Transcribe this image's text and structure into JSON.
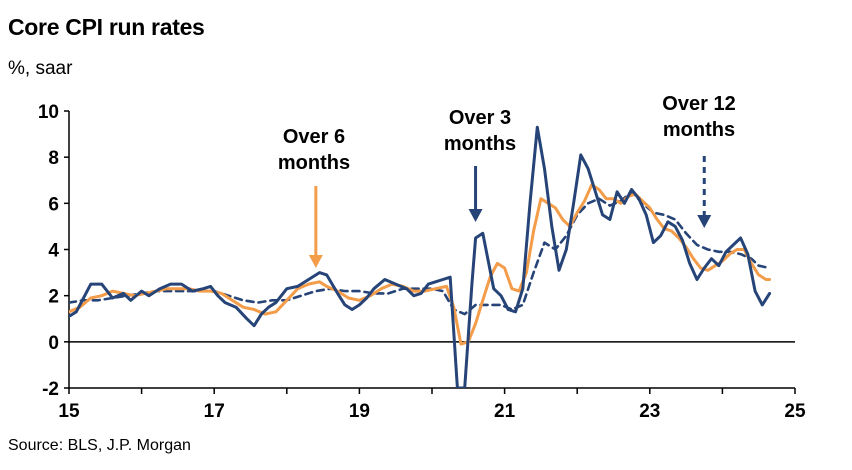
{
  "chart_data": {
    "type": "line",
    "title": "Core CPI run rates",
    "ylabel": "%, saar",
    "source": "Source: BLS, J.P. Morgan",
    "xlim": [
      2015,
      2025
    ],
    "ylim": [
      -2,
      10
    ],
    "x_ticks": [
      2015,
      2017,
      2019,
      2021,
      2023,
      2025
    ],
    "x_tick_labels": [
      "15",
      "17",
      "19",
      "21",
      "23",
      "25"
    ],
    "y_ticks": [
      -2,
      0,
      2,
      4,
      6,
      8,
      10
    ],
    "y_tick_labels": [
      "-2",
      "0",
      "2",
      "4",
      "6",
      "8",
      "10"
    ],
    "colors": {
      "m3": "#264478",
      "m6": "#F39C4A",
      "m12": "#264478"
    },
    "annotations": [
      {
        "text": [
          "Over 6",
          "months"
        ],
        "target_x": 2018.4,
        "series": "m6"
      },
      {
        "text": [
          "Over 3",
          "months"
        ],
        "target_x": 2020.6,
        "series": "m3"
      },
      {
        "text": [
          "Over 12",
          "months"
        ],
        "target_x": 2023.75,
        "series": "m12"
      }
    ],
    "series": [
      {
        "key": "m3",
        "points": [
          [
            2015.0,
            1.1
          ],
          [
            2015.1,
            1.3
          ],
          [
            2015.3,
            2.5
          ],
          [
            2015.45,
            2.5
          ],
          [
            2015.6,
            1.9
          ],
          [
            2015.75,
            2.1
          ],
          [
            2015.85,
            1.8
          ],
          [
            2016.0,
            2.2
          ],
          [
            2016.1,
            2.0
          ],
          [
            2016.25,
            2.3
          ],
          [
            2016.4,
            2.5
          ],
          [
            2016.55,
            2.5
          ],
          [
            2016.7,
            2.2
          ],
          [
            2016.85,
            2.3
          ],
          [
            2016.95,
            2.4
          ],
          [
            2017.05,
            2.0
          ],
          [
            2017.15,
            1.7
          ],
          [
            2017.3,
            1.5
          ],
          [
            2017.45,
            1.0
          ],
          [
            2017.55,
            0.7
          ],
          [
            2017.65,
            1.2
          ],
          [
            2017.75,
            1.5
          ],
          [
            2017.85,
            1.7
          ],
          [
            2018.0,
            2.3
          ],
          [
            2018.15,
            2.4
          ],
          [
            2018.3,
            2.7
          ],
          [
            2018.45,
            3.0
          ],
          [
            2018.55,
            2.9
          ],
          [
            2018.7,
            2.1
          ],
          [
            2018.8,
            1.6
          ],
          [
            2018.9,
            1.4
          ],
          [
            2019.0,
            1.6
          ],
          [
            2019.1,
            1.9
          ],
          [
            2019.2,
            2.3
          ],
          [
            2019.35,
            2.7
          ],
          [
            2019.5,
            2.5
          ],
          [
            2019.65,
            2.3
          ],
          [
            2019.75,
            2.0
          ],
          [
            2019.85,
            2.1
          ],
          [
            2019.95,
            2.5
          ],
          [
            2020.05,
            2.6
          ],
          [
            2020.15,
            2.7
          ],
          [
            2020.25,
            2.8
          ],
          [
            2020.35,
            -2.0
          ],
          [
            2020.45,
            -2.0
          ],
          [
            2020.55,
            2.5
          ],
          [
            2020.6,
            4.5
          ],
          [
            2020.7,
            4.7
          ],
          [
            2020.85,
            2.3
          ],
          [
            2020.95,
            2.0
          ],
          [
            2021.05,
            1.4
          ],
          [
            2021.15,
            1.3
          ],
          [
            2021.25,
            2.3
          ],
          [
            2021.35,
            6.0
          ],
          [
            2021.45,
            9.3
          ],
          [
            2021.55,
            7.5
          ],
          [
            2021.65,
            5.0
          ],
          [
            2021.75,
            3.1
          ],
          [
            2021.85,
            4.0
          ],
          [
            2021.95,
            6.0
          ],
          [
            2022.05,
            8.1
          ],
          [
            2022.15,
            7.5
          ],
          [
            2022.25,
            6.5
          ],
          [
            2022.35,
            5.5
          ],
          [
            2022.45,
            5.3
          ],
          [
            2022.55,
            6.5
          ],
          [
            2022.65,
            6.0
          ],
          [
            2022.75,
            6.6
          ],
          [
            2022.85,
            6.2
          ],
          [
            2022.95,
            5.5
          ],
          [
            2023.05,
            4.3
          ],
          [
            2023.15,
            4.6
          ],
          [
            2023.25,
            5.2
          ],
          [
            2023.35,
            5.0
          ],
          [
            2023.45,
            4.4
          ],
          [
            2023.55,
            3.4
          ],
          [
            2023.65,
            2.7
          ],
          [
            2023.75,
            3.2
          ],
          [
            2023.85,
            3.6
          ],
          [
            2023.95,
            3.3
          ],
          [
            2024.05,
            3.9
          ],
          [
            2024.15,
            4.2
          ],
          [
            2024.25,
            4.5
          ],
          [
            2024.35,
            3.8
          ],
          [
            2024.45,
            2.2
          ],
          [
            2024.55,
            1.6
          ],
          [
            2024.65,
            2.1
          ]
        ]
      },
      {
        "key": "m6",
        "points": [
          [
            2015.0,
            1.3
          ],
          [
            2015.15,
            1.5
          ],
          [
            2015.3,
            1.9
          ],
          [
            2015.45,
            2.0
          ],
          [
            2015.6,
            2.2
          ],
          [
            2015.75,
            2.1
          ],
          [
            2015.9,
            2.0
          ],
          [
            2016.05,
            2.1
          ],
          [
            2016.2,
            2.2
          ],
          [
            2016.35,
            2.3
          ],
          [
            2016.5,
            2.3
          ],
          [
            2016.65,
            2.3
          ],
          [
            2016.8,
            2.2
          ],
          [
            2016.95,
            2.2
          ],
          [
            2017.1,
            2.1
          ],
          [
            2017.25,
            1.8
          ],
          [
            2017.4,
            1.5
          ],
          [
            2017.55,
            1.4
          ],
          [
            2017.7,
            1.2
          ],
          [
            2017.85,
            1.3
          ],
          [
            2018.0,
            1.8
          ],
          [
            2018.15,
            2.3
          ],
          [
            2018.3,
            2.5
          ],
          [
            2018.45,
            2.6
          ],
          [
            2018.55,
            2.4
          ],
          [
            2018.7,
            2.2
          ],
          [
            2018.85,
            1.9
          ],
          [
            2019.0,
            1.8
          ],
          [
            2019.15,
            2.0
          ],
          [
            2019.3,
            2.3
          ],
          [
            2019.45,
            2.5
          ],
          [
            2019.6,
            2.4
          ],
          [
            2019.75,
            2.2
          ],
          [
            2019.9,
            2.2
          ],
          [
            2020.05,
            2.3
          ],
          [
            2020.2,
            2.4
          ],
          [
            2020.3,
            1.5
          ],
          [
            2020.4,
            -0.1
          ],
          [
            2020.5,
            0.0
          ],
          [
            2020.6,
            0.8
          ],
          [
            2020.7,
            1.8
          ],
          [
            2020.8,
            2.8
          ],
          [
            2020.9,
            3.4
          ],
          [
            2021.0,
            3.2
          ],
          [
            2021.1,
            2.3
          ],
          [
            2021.2,
            2.2
          ],
          [
            2021.3,
            3.0
          ],
          [
            2021.4,
            4.8
          ],
          [
            2021.5,
            6.2
          ],
          [
            2021.6,
            6.0
          ],
          [
            2021.7,
            5.8
          ],
          [
            2021.8,
            5.3
          ],
          [
            2021.9,
            5.0
          ],
          [
            2022.0,
            5.6
          ],
          [
            2022.1,
            6.1
          ],
          [
            2022.2,
            6.8
          ],
          [
            2022.3,
            6.6
          ],
          [
            2022.4,
            6.2
          ],
          [
            2022.5,
            6.2
          ],
          [
            2022.6,
            6.0
          ],
          [
            2022.7,
            6.3
          ],
          [
            2022.8,
            6.4
          ],
          [
            2022.9,
            6.1
          ],
          [
            2023.0,
            5.8
          ],
          [
            2023.1,
            5.3
          ],
          [
            2023.2,
            4.9
          ],
          [
            2023.3,
            4.8
          ],
          [
            2023.4,
            4.5
          ],
          [
            2023.5,
            4.1
          ],
          [
            2023.6,
            3.6
          ],
          [
            2023.7,
            3.2
          ],
          [
            2023.8,
            3.1
          ],
          [
            2023.9,
            3.3
          ],
          [
            2024.0,
            3.5
          ],
          [
            2024.1,
            3.8
          ],
          [
            2024.2,
            4.0
          ],
          [
            2024.3,
            4.0
          ],
          [
            2024.4,
            3.4
          ],
          [
            2024.5,
            2.9
          ],
          [
            2024.6,
            2.7
          ],
          [
            2024.65,
            2.7
          ]
        ]
      },
      {
        "key": "m12",
        "points": [
          [
            2015.0,
            1.7
          ],
          [
            2015.2,
            1.8
          ],
          [
            2015.4,
            1.8
          ],
          [
            2015.6,
            1.9
          ],
          [
            2015.8,
            2.0
          ],
          [
            2016.0,
            2.1
          ],
          [
            2016.2,
            2.2
          ],
          [
            2016.4,
            2.2
          ],
          [
            2016.6,
            2.2
          ],
          [
            2016.8,
            2.2
          ],
          [
            2017.0,
            2.2
          ],
          [
            2017.2,
            2.0
          ],
          [
            2017.4,
            1.8
          ],
          [
            2017.6,
            1.7
          ],
          [
            2017.8,
            1.8
          ],
          [
            2018.0,
            1.8
          ],
          [
            2018.2,
            2.0
          ],
          [
            2018.4,
            2.2
          ],
          [
            2018.6,
            2.3
          ],
          [
            2018.8,
            2.2
          ],
          [
            2019.0,
            2.2
          ],
          [
            2019.2,
            2.1
          ],
          [
            2019.4,
            2.1
          ],
          [
            2019.6,
            2.3
          ],
          [
            2019.8,
            2.3
          ],
          [
            2020.0,
            2.3
          ],
          [
            2020.15,
            2.2
          ],
          [
            2020.3,
            1.4
          ],
          [
            2020.45,
            1.2
          ],
          [
            2020.6,
            1.6
          ],
          [
            2020.8,
            1.6
          ],
          [
            2020.95,
            1.6
          ],
          [
            2021.1,
            1.4
          ],
          [
            2021.25,
            1.6
          ],
          [
            2021.4,
            3.0
          ],
          [
            2021.55,
            4.3
          ],
          [
            2021.7,
            4.0
          ],
          [
            2021.85,
            4.6
          ],
          [
            2022.0,
            5.5
          ],
          [
            2022.15,
            6.0
          ],
          [
            2022.3,
            6.2
          ],
          [
            2022.45,
            5.9
          ],
          [
            2022.6,
            6.1
          ],
          [
            2022.75,
            6.5
          ],
          [
            2022.9,
            6.0
          ],
          [
            2023.05,
            5.6
          ],
          [
            2023.2,
            5.5
          ],
          [
            2023.35,
            5.3
          ],
          [
            2023.5,
            4.7
          ],
          [
            2023.65,
            4.2
          ],
          [
            2023.8,
            4.0
          ],
          [
            2023.95,
            3.9
          ],
          [
            2024.1,
            3.9
          ],
          [
            2024.25,
            3.8
          ],
          [
            2024.4,
            3.6
          ],
          [
            2024.5,
            3.3
          ],
          [
            2024.65,
            3.2
          ]
        ]
      }
    ]
  }
}
